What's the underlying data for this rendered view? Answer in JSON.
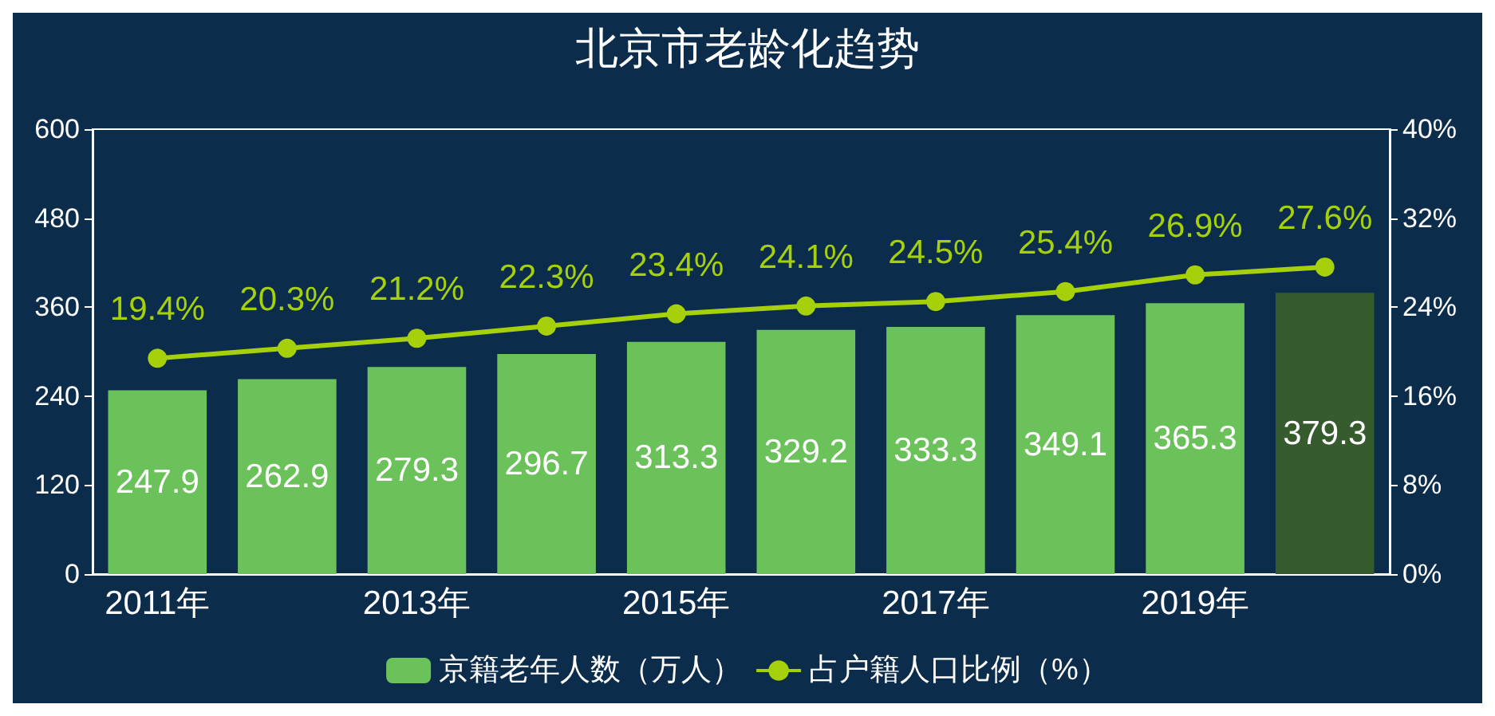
{
  "chart_data": {
    "type": "bar",
    "title": "北京市老龄化趋势",
    "categories": [
      "2011年",
      null,
      "2013年",
      null,
      "2015年",
      null,
      "2017年",
      null,
      "2019年",
      null
    ],
    "series": [
      {
        "name": "京籍老年人数（万人）",
        "color": "#6cc25a",
        "colors": [
          "#6cc25a",
          "#6cc25a",
          "#6cc25a",
          "#6cc25a",
          "#6cc25a",
          "#6cc25a",
          "#6cc25a",
          "#6cc25a",
          "#6cc25a",
          "#365c2e"
        ],
        "values": [
          247.9,
          262.9,
          279.3,
          296.7,
          313.3,
          329.2,
          333.3,
          349.1,
          365.3,
          379.3
        ],
        "value_labels": [
          "247.9",
          "262.9",
          "279.3",
          "296.7",
          "313.3",
          "329.2",
          "333.3",
          "349.1",
          "365.3",
          "379.3"
        ]
      },
      {
        "name": "占户籍人口比例（%）",
        "type": "line",
        "axis": "y2",
        "color": "#a6d10a",
        "values": [
          19.4,
          20.3,
          21.2,
          22.3,
          23.4,
          24.1,
          24.5,
          25.4,
          26.9,
          27.6
        ],
        "value_labels": [
          "19.4%",
          "20.3%",
          "21.2%",
          "22.3%",
          "23.4%",
          "24.1%",
          "24.5%",
          "25.4%",
          "26.9%",
          "27.6%"
        ]
      }
    ],
    "ylim": [
      0,
      600
    ],
    "yticks": [
      0,
      120,
      240,
      360,
      480,
      600
    ],
    "y2lim": [
      0,
      40
    ],
    "y2ticks": [
      {
        "value": 0,
        "label": "0%"
      },
      {
        "value": 8,
        "label": "8%"
      },
      {
        "value": 16,
        "label": "16%"
      },
      {
        "value": 24,
        "label": "24%"
      },
      {
        "value": 32,
        "label": "32%"
      },
      {
        "value": 40,
        "label": "40%"
      }
    ],
    "grid": false,
    "legend": "bottom",
    "marker": "circle",
    "line_style": "solid"
  }
}
